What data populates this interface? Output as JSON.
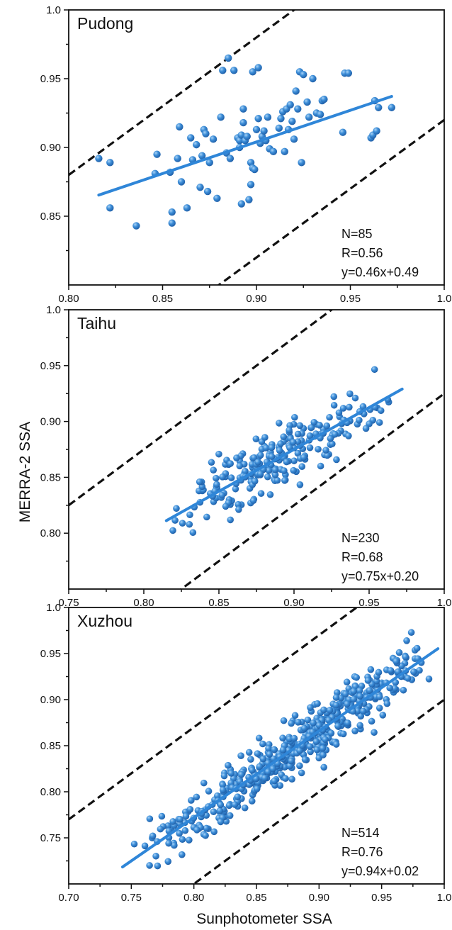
{
  "figure": {
    "ylabel": "MERRA-2 SSA",
    "xlabel": "Sunphotometer SSA",
    "colors": {
      "points": "#3d8ed8",
      "point_highlight": "#a9d3f7",
      "fit": "#2f86d8",
      "bounds": "#111111",
      "axes": "#111111"
    }
  },
  "chart_data": [
    {
      "type": "scatter",
      "title": "Pudong",
      "xlim": [
        0.8,
        1.0
      ],
      "ylim": [
        0.8,
        1.0
      ],
      "xticks": [
        "0.80",
        "0.85",
        "0.90",
        "0.95",
        "1.0"
      ],
      "yticks": [
        "0.85",
        "0.90",
        "0.95",
        "1.0"
      ],
      "stats": [
        "N=85",
        "R=0.56",
        "y=0.46x+0.49"
      ],
      "fit": {
        "slope": 0.46,
        "intercept": 0.49,
        "x_range": [
          0.816,
          0.972
        ]
      },
      "bounds": [
        {
          "slope": 1.0,
          "intercept": 0.08
        },
        {
          "slope": 1.0,
          "intercept": -0.08
        }
      ],
      "points": [
        [
          0.816,
          0.892
        ],
        [
          0.822,
          0.889
        ],
        [
          0.822,
          0.856
        ],
        [
          0.836,
          0.843
        ],
        [
          0.846,
          0.881
        ],
        [
          0.847,
          0.895
        ],
        [
          0.854,
          0.882
        ],
        [
          0.855,
          0.853
        ],
        [
          0.855,
          0.845
        ],
        [
          0.858,
          0.892
        ],
        [
          0.859,
          0.915
        ],
        [
          0.86,
          0.875
        ],
        [
          0.863,
          0.856
        ],
        [
          0.865,
          0.907
        ],
        [
          0.866,
          0.891
        ],
        [
          0.868,
          0.902
        ],
        [
          0.87,
          0.871
        ],
        [
          0.871,
          0.894
        ],
        [
          0.872,
          0.913
        ],
        [
          0.873,
          0.91
        ],
        [
          0.874,
          0.868
        ],
        [
          0.875,
          0.889
        ],
        [
          0.877,
          0.906
        ],
        [
          0.879,
          0.863
        ],
        [
          0.881,
          0.922
        ],
        [
          0.882,
          0.956
        ],
        [
          0.884,
          0.896
        ],
        [
          0.885,
          0.965
        ],
        [
          0.886,
          0.892
        ],
        [
          0.888,
          0.956
        ],
        [
          0.89,
          0.907
        ],
        [
          0.891,
          0.905
        ],
        [
          0.891,
          0.9
        ],
        [
          0.892,
          0.909
        ],
        [
          0.892,
          0.859
        ],
        [
          0.893,
          0.928
        ],
        [
          0.893,
          0.918
        ],
        [
          0.894,
          0.905
        ],
        [
          0.895,
          0.908
        ],
        [
          0.896,
          0.862
        ],
        [
          0.897,
          0.873
        ],
        [
          0.897,
          0.889
        ],
        [
          0.898,
          0.885
        ],
        [
          0.898,
          0.955
        ],
        [
          0.899,
          0.884
        ],
        [
          0.9,
          0.913
        ],
        [
          0.901,
          0.958
        ],
        [
          0.901,
          0.921
        ],
        [
          0.902,
          0.903
        ],
        [
          0.903,
          0.908
        ],
        [
          0.904,
          0.912
        ],
        [
          0.905,
          0.905
        ],
        [
          0.906,
          0.922
        ],
        [
          0.907,
          0.899
        ],
        [
          0.909,
          0.897
        ],
        [
          0.912,
          0.914
        ],
        [
          0.913,
          0.921
        ],
        [
          0.914,
          0.926
        ],
        [
          0.915,
          0.897
        ],
        [
          0.916,
          0.928
        ],
        [
          0.917,
          0.913
        ],
        [
          0.918,
          0.931
        ],
        [
          0.919,
          0.919
        ],
        [
          0.92,
          0.906
        ],
        [
          0.921,
          0.941
        ],
        [
          0.922,
          0.928
        ],
        [
          0.923,
          0.955
        ],
        [
          0.924,
          0.889
        ],
        [
          0.925,
          0.953
        ],
        [
          0.927,
          0.933
        ],
        [
          0.928,
          0.922
        ],
        [
          0.93,
          0.95
        ],
        [
          0.932,
          0.925
        ],
        [
          0.934,
          0.924
        ],
        [
          0.935,
          0.934
        ],
        [
          0.936,
          0.935
        ],
        [
          0.946,
          0.911
        ],
        [
          0.947,
          0.954
        ],
        [
          0.949,
          0.954
        ],
        [
          0.961,
          0.907
        ],
        [
          0.962,
          0.909
        ],
        [
          0.963,
          0.934
        ],
        [
          0.964,
          0.912
        ],
        [
          0.965,
          0.929
        ],
        [
          0.972,
          0.929
        ]
      ]
    },
    {
      "type": "scatter",
      "title": "Taihu",
      "xlim": [
        0.75,
        1.0
      ],
      "ylim": [
        0.75,
        1.0
      ],
      "xticks": [
        "0.75",
        "0.80",
        "0.85",
        "0.90",
        "0.95",
        "1.0"
      ],
      "yticks": [
        "0.80",
        "0.85",
        "0.90",
        "0.95",
        "1.0"
      ],
      "stats": [
        "N=230",
        "R=0.68",
        "y=0.75x+0.20"
      ],
      "fit": {
        "slope": 0.75,
        "intercept": 0.2,
        "x_range": [
          0.815,
          0.972
        ]
      },
      "bounds": [
        {
          "slope": 1.0,
          "intercept": 0.075
        },
        {
          "slope": 1.0,
          "intercept": -0.075
        }
      ],
      "n": 230,
      "fit_points": true,
      "spread": 0.027,
      "x_gen": [
        0.815,
        0.972,
        0.88
      ]
    },
    {
      "type": "scatter",
      "title": "Xuzhou",
      "xlim": [
        0.7,
        1.0
      ],
      "ylim": [
        0.7,
        1.0
      ],
      "xticks": [
        "0.70",
        "0.75",
        "0.80",
        "0.85",
        "0.90",
        "0.95",
        "1.0"
      ],
      "yticks": [
        "0.75",
        "0.80",
        "0.85",
        "0.90",
        "0.95",
        "1.0"
      ],
      "stats": [
        "N=514",
        "R=0.76",
        "y=0.94x+0.02"
      ],
      "fit": {
        "slope": 0.94,
        "intercept": 0.02,
        "x_range": [
          0.743,
          0.995
        ]
      },
      "bounds": [
        {
          "slope": 1.0,
          "intercept": 0.07
        },
        {
          "slope": 1.0,
          "intercept": -0.1
        }
      ],
      "n": 514,
      "fit_points": true,
      "spread": 0.03,
      "x_gen": [
        0.743,
        0.995,
        0.905
      ]
    }
  ]
}
